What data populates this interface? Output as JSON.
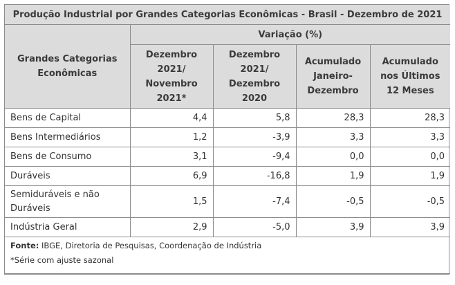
{
  "title": "Produção Industrial por Grandes Categorias Econômicas - Brasil - Dezembro de 2021",
  "header": {
    "category_col": "Grandes Categorias Econômicas",
    "variation": "Variação (%)",
    "cols": [
      "Dezembro 2021/ Novembro 2021*",
      "Dezembro 2021/ Dezembro 2020",
      "Acumulado Janeiro-Dezembro",
      "Acumulado nos Últimos 12 Meses"
    ]
  },
  "rows": [
    {
      "label": "Bens de Capital",
      "values": [
        "4,4",
        "5,8",
        "28,3",
        "28,3"
      ]
    },
    {
      "label": "Bens Intermediários",
      "values": [
        "1,2",
        "-3,9",
        "3,3",
        "3,3"
      ]
    },
    {
      "label": "Bens de Consumo",
      "values": [
        "3,1",
        "-9,4",
        "0,0",
        "0,0"
      ]
    },
    {
      "label": "Duráveis",
      "values": [
        "6,9",
        "-16,8",
        "1,9",
        "1,9"
      ]
    },
    {
      "label": "Semiduráveis e não Duráveis",
      "values": [
        "1,5",
        "-7,4",
        "-0,5",
        "-0,5"
      ]
    },
    {
      "label": "Indústria Geral",
      "values": [
        "2,9",
        "-5,0",
        "3,9",
        "3,9"
      ]
    }
  ],
  "notes": {
    "source_label": "Fonte:",
    "source_text": " IBGE, Diretoria de Pesquisas, Coordenação de Indústria",
    "footnote": "*Série com ajuste sazonal"
  }
}
